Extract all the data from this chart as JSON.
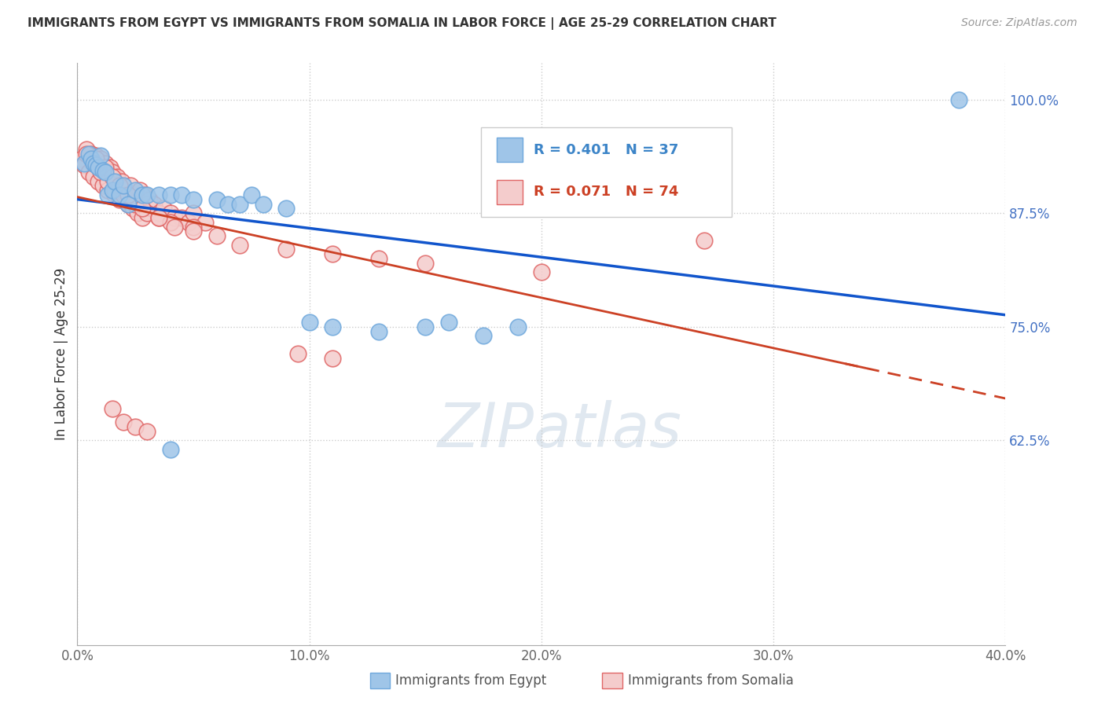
{
  "title": "IMMIGRANTS FROM EGYPT VS IMMIGRANTS FROM SOMALIA IN LABOR FORCE | AGE 25-29 CORRELATION CHART",
  "source": "Source: ZipAtlas.com",
  "ylabel": "In Labor Force | Age 25-29",
  "x_min": 0.0,
  "x_max": 0.4,
  "y_min": 0.4,
  "y_max": 1.04,
  "x_ticks": [
    0.0,
    0.1,
    0.2,
    0.3,
    0.4
  ],
  "x_tick_labels": [
    "0.0%",
    "10.0%",
    "20.0%",
    "30.0%",
    "40.0%"
  ],
  "y_ticks": [
    0.625,
    0.75,
    0.875,
    1.0
  ],
  "y_tick_labels": [
    "62.5%",
    "75.0%",
    "87.5%",
    "100.0%"
  ],
  "egypt_fill_color": "#9fc5e8",
  "somalia_fill_color": "#f4cccc",
  "egypt_edge_color": "#6fa8dc",
  "somalia_edge_color": "#e06666",
  "trend_egypt_color": "#1155cc",
  "trend_somalia_color": "#cc4125",
  "R_egypt": 0.401,
  "N_egypt": 37,
  "R_somalia": 0.071,
  "N_somalia": 74,
  "background_color": "#ffffff",
  "egypt_x": [
    0.003,
    0.005,
    0.006,
    0.007,
    0.008,
    0.009,
    0.01,
    0.011,
    0.012,
    0.013,
    0.015,
    0.016,
    0.018,
    0.02,
    0.022,
    0.025,
    0.028,
    0.03,
    0.035,
    0.04,
    0.045,
    0.05,
    0.06,
    0.065,
    0.07,
    0.075,
    0.08,
    0.09,
    0.1,
    0.11,
    0.13,
    0.15,
    0.16,
    0.175,
    0.19,
    0.38,
    0.04
  ],
  "egypt_y": [
    0.93,
    0.94,
    0.935,
    0.93,
    0.928,
    0.925,
    0.938,
    0.922,
    0.92,
    0.895,
    0.9,
    0.91,
    0.895,
    0.905,
    0.885,
    0.9,
    0.895,
    0.895,
    0.895,
    0.895,
    0.895,
    0.89,
    0.89,
    0.885,
    0.885,
    0.895,
    0.885,
    0.88,
    0.755,
    0.75,
    0.745,
    0.75,
    0.755,
    0.74,
    0.75,
    1.0,
    0.615
  ],
  "somalia_x": [
    0.002,
    0.003,
    0.004,
    0.005,
    0.006,
    0.007,
    0.008,
    0.009,
    0.01,
    0.011,
    0.012,
    0.013,
    0.014,
    0.015,
    0.016,
    0.017,
    0.018,
    0.019,
    0.02,
    0.021,
    0.022,
    0.023,
    0.024,
    0.025,
    0.026,
    0.027,
    0.028,
    0.029,
    0.03,
    0.031,
    0.032,
    0.033,
    0.035,
    0.037,
    0.04,
    0.042,
    0.045,
    0.048,
    0.05,
    0.055,
    0.007,
    0.01,
    0.013,
    0.016,
    0.02,
    0.025,
    0.03,
    0.035,
    0.04,
    0.05,
    0.004,
    0.008,
    0.012,
    0.015,
    0.018,
    0.022,
    0.028,
    0.035,
    0.042,
    0.05,
    0.06,
    0.07,
    0.09,
    0.11,
    0.13,
    0.15,
    0.2,
    0.27,
    0.095,
    0.11,
    0.015,
    0.02,
    0.025,
    0.03
  ],
  "somalia_y": [
    0.935,
    0.928,
    0.945,
    0.92,
    0.94,
    0.915,
    0.938,
    0.91,
    0.935,
    0.905,
    0.93,
    0.9,
    0.925,
    0.92,
    0.895,
    0.915,
    0.89,
    0.91,
    0.9,
    0.895,
    0.885,
    0.905,
    0.88,
    0.895,
    0.875,
    0.9,
    0.87,
    0.895,
    0.885,
    0.89,
    0.88,
    0.885,
    0.875,
    0.88,
    0.875,
    0.87,
    0.87,
    0.865,
    0.875,
    0.865,
    0.93,
    0.92,
    0.91,
    0.9,
    0.895,
    0.885,
    0.875,
    0.87,
    0.865,
    0.86,
    0.94,
    0.935,
    0.925,
    0.915,
    0.905,
    0.895,
    0.88,
    0.87,
    0.86,
    0.855,
    0.85,
    0.84,
    0.835,
    0.83,
    0.825,
    0.82,
    0.81,
    0.845,
    0.72,
    0.715,
    0.66,
    0.645,
    0.64,
    0.635
  ]
}
